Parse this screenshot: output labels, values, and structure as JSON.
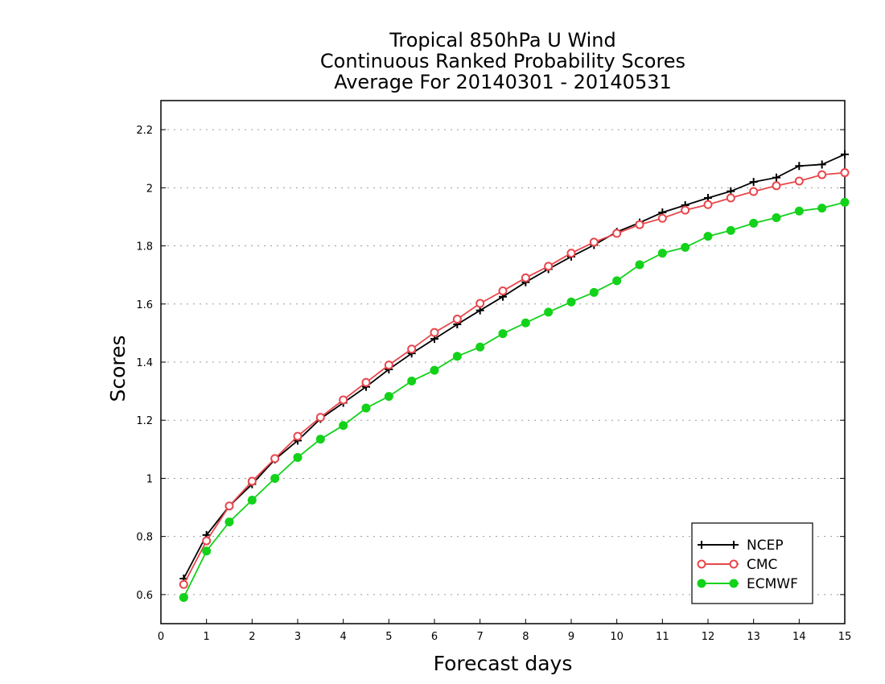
{
  "chart_data": {
    "type": "line",
    "title": [
      "Tropical 850hPa U Wind",
      "Continuous Ranked Probability Scores",
      "Average For 20140301 - 20140531"
    ],
    "xlabel": "Forecast days",
    "ylabel": "Scores",
    "xlim": [
      0,
      15
    ],
    "ylim": [
      0.5,
      2.3
    ],
    "xticks": [
      "0",
      "1",
      "2",
      "3",
      "4",
      "5",
      "6",
      "7",
      "8",
      "9",
      "10",
      "11",
      "12",
      "13",
      "14",
      "15"
    ],
    "yticks": [
      "0.6",
      "0.8",
      "1",
      "1.2",
      "1.4",
      "1.6",
      "1.8",
      "2",
      "2.2"
    ],
    "ytick_values": [
      0.6,
      0.8,
      1.0,
      1.2,
      1.4,
      1.6,
      1.8,
      2.0,
      2.2
    ],
    "grid": "horizontal dotted",
    "legend_position": "bottom-right",
    "x": [
      0.5,
      1,
      1.5,
      2,
      2.5,
      3,
      3.5,
      4,
      4.5,
      5,
      5.5,
      6,
      6.5,
      7,
      7.5,
      8,
      8.5,
      9,
      9.5,
      10,
      10.5,
      11,
      11.5,
      12,
      12.5,
      13,
      13.5,
      14,
      14.5,
      15
    ],
    "series": [
      {
        "name": "NCEP",
        "color": "#000000",
        "marker": "plus",
        "values": [
          0.655,
          0.805,
          0.905,
          0.98,
          1.065,
          1.13,
          1.205,
          1.26,
          1.315,
          1.375,
          1.43,
          1.48,
          1.53,
          1.578,
          1.625,
          1.675,
          1.72,
          1.763,
          1.803,
          1.848,
          1.88,
          1.915,
          1.94,
          1.965,
          1.988,
          2.02,
          2.035,
          2.075,
          2.08,
          2.115
        ]
      },
      {
        "name": "CMC",
        "color": "#e8464b",
        "marker": "open-circle",
        "values": [
          0.635,
          0.785,
          0.905,
          0.99,
          1.068,
          1.145,
          1.21,
          1.27,
          1.33,
          1.39,
          1.445,
          1.502,
          1.548,
          1.602,
          1.645,
          1.69,
          1.73,
          1.775,
          1.813,
          1.843,
          1.873,
          1.895,
          1.923,
          1.942,
          1.965,
          1.987,
          2.007,
          2.023,
          2.045,
          2.052
        ]
      },
      {
        "name": "ECMWF",
        "color": "#12d21a",
        "marker": "filled-circle",
        "values": [
          0.59,
          0.75,
          0.85,
          0.925,
          1.0,
          1.072,
          1.135,
          1.182,
          1.242,
          1.282,
          1.335,
          1.372,
          1.42,
          1.452,
          1.498,
          1.535,
          1.572,
          1.607,
          1.64,
          1.68,
          1.735,
          1.775,
          1.795,
          1.833,
          1.853,
          1.878,
          1.897,
          1.92,
          1.93,
          1.95
        ]
      }
    ]
  }
}
